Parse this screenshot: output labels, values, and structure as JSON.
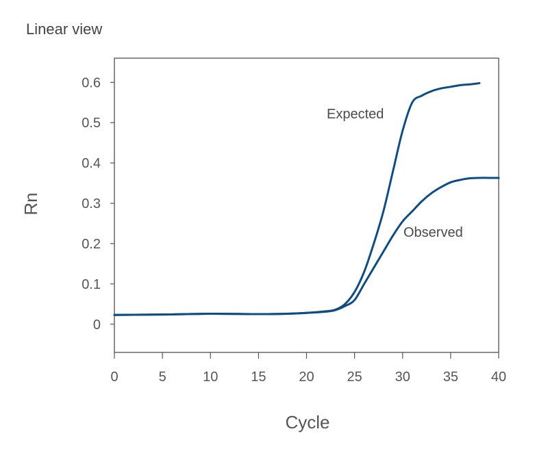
{
  "chart_data": {
    "type": "line",
    "title": "Linear view",
    "xlabel": "Cycle",
    "ylabel": "Rn",
    "xlim": [
      0,
      40
    ],
    "ylim": [
      -0.07,
      0.66
    ],
    "xticks": [
      0,
      5,
      10,
      15,
      20,
      25,
      30,
      35,
      40
    ],
    "xtick_labels": [
      "0",
      "5",
      "10",
      "15",
      "20",
      "25",
      "30",
      "35",
      "40"
    ],
    "yticks": [
      0,
      0.1,
      0.2,
      0.3,
      0.4,
      0.5,
      0.6
    ],
    "ytick_labels": [
      "0",
      "0.1",
      "0.2",
      "0.3",
      "0.4",
      "0.5",
      "0.6"
    ],
    "grid": false,
    "line_color": "#0f4c81",
    "series": [
      {
        "name": "Expected",
        "x": [
          0,
          5,
          10,
          15,
          18,
          20,
          22,
          23,
          24,
          25,
          26,
          27,
          28,
          29,
          30,
          31,
          32,
          33,
          34,
          35,
          36,
          37,
          38
        ],
        "y": [
          0.023,
          0.024,
          0.026,
          0.025,
          0.026,
          0.028,
          0.032,
          0.036,
          0.05,
          0.08,
          0.13,
          0.2,
          0.28,
          0.38,
          0.48,
          0.55,
          0.567,
          0.578,
          0.585,
          0.589,
          0.593,
          0.595,
          0.598
        ]
      },
      {
        "name": "Observed",
        "x": [
          0,
          5,
          10,
          15,
          18,
          20,
          22,
          23,
          24,
          25,
          26,
          27,
          28,
          29,
          30,
          31,
          32,
          33,
          34,
          35,
          36,
          37,
          38,
          39,
          40
        ],
        "y": [
          0.023,
          0.024,
          0.026,
          0.025,
          0.026,
          0.028,
          0.031,
          0.035,
          0.045,
          0.06,
          0.1,
          0.14,
          0.18,
          0.22,
          0.255,
          0.28,
          0.305,
          0.325,
          0.34,
          0.352,
          0.358,
          0.362,
          0.363,
          0.363,
          0.363
        ]
      }
    ]
  }
}
